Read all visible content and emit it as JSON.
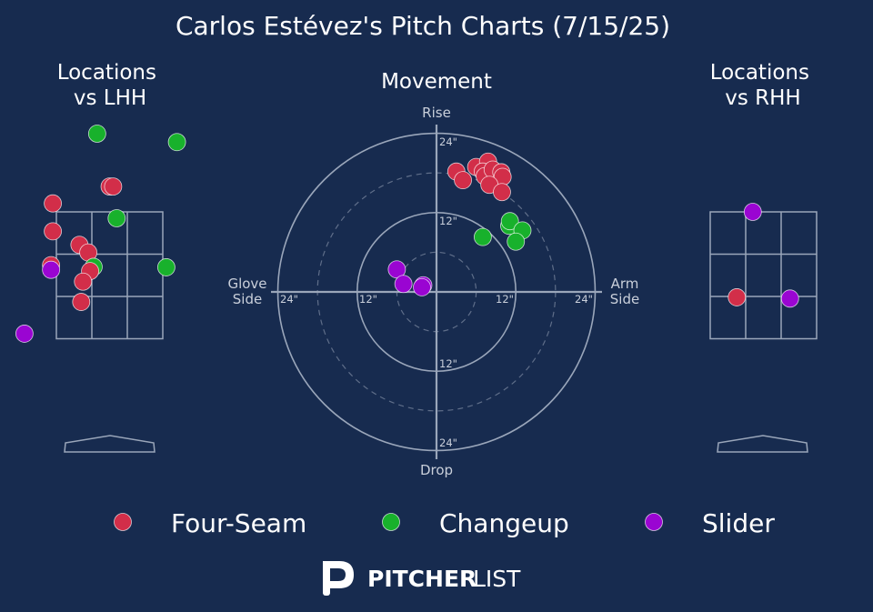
{
  "title": "Carlos Estévez's Pitch Charts (7/15/25)",
  "colors": {
    "background": "#172b4f",
    "four_seam": "#d22e49",
    "changeup": "#18b12c",
    "slider": "#9a05d2",
    "grid": "#9aa6ba",
    "text": "#ffffff",
    "muted": "#c9cfda"
  },
  "branding": {
    "logo_mark": "P",
    "word_bold": "PITCHER",
    "word_light": "LIST"
  },
  "chart_data": [
    {
      "type": "scatter",
      "title": "Locations\nvs LHH",
      "units": "strike zone cells",
      "points": [
        {
          "pitch": "Changeup",
          "x": -0.35,
          "y": 3.35
        },
        {
          "pitch": "Changeup",
          "x": 1.9,
          "y": 3.15
        },
        {
          "pitch": "Four-Seam",
          "x": 0.0,
          "y": 2.1
        },
        {
          "pitch": "Four-Seam",
          "x": 0.1,
          "y": 2.1
        },
        {
          "pitch": "Four-Seam",
          "x": -1.6,
          "y": 1.7
        },
        {
          "pitch": "Changeup",
          "x": 0.2,
          "y": 1.35
        },
        {
          "pitch": "Four-Seam",
          "x": -1.6,
          "y": 1.04
        },
        {
          "pitch": "Four-Seam",
          "x": -0.85,
          "y": 0.72
        },
        {
          "pitch": "Four-Seam",
          "x": -0.6,
          "y": 0.54
        },
        {
          "pitch": "Changeup",
          "x": -0.45,
          "y": 0.2
        },
        {
          "pitch": "Four-Seam",
          "x": -0.55,
          "y": 0.1
        },
        {
          "pitch": "Four-Seam",
          "x": -1.65,
          "y": 0.24
        },
        {
          "pitch": "Slider",
          "x": -1.65,
          "y": 0.13
        },
        {
          "pitch": "Four-Seam",
          "x": -0.75,
          "y": -0.15
        },
        {
          "pitch": "Changeup",
          "x": 1.6,
          "y": 0.19
        },
        {
          "pitch": "Four-Seam",
          "x": -0.8,
          "y": -0.63
        },
        {
          "pitch": "Slider",
          "x": -2.4,
          "y": -1.38
        }
      ]
    },
    {
      "type": "scatter",
      "title": "Movement",
      "xlabel_left": "Glove\nSide",
      "xlabel_right": "Arm\nSide",
      "ylabel_top": "Rise",
      "ylabel_bottom": "Drop",
      "ring_labels": [
        "24\"",
        "12\"",
        "12\"",
        "24\"",
        "12\"",
        "24\"",
        "12\"",
        "24\""
      ],
      "units": "inches",
      "rings": [
        6,
        12,
        18,
        24
      ],
      "points": [
        {
          "pitch": "Four-Seam",
          "x": 3,
          "y": 18.2
        },
        {
          "pitch": "Four-Seam",
          "x": 4,
          "y": 16.9
        },
        {
          "pitch": "Four-Seam",
          "x": 6,
          "y": 18.9
        },
        {
          "pitch": "Four-Seam",
          "x": 7.8,
          "y": 19.7
        },
        {
          "pitch": "Four-Seam",
          "x": 7.0,
          "y": 18.2
        },
        {
          "pitch": "Four-Seam",
          "x": 7.3,
          "y": 17.5
        },
        {
          "pitch": "Four-Seam",
          "x": 8.5,
          "y": 18.5
        },
        {
          "pitch": "Four-Seam",
          "x": 9.8,
          "y": 18.1
        },
        {
          "pitch": "Four-Seam",
          "x": 10.0,
          "y": 17.4
        },
        {
          "pitch": "Four-Seam",
          "x": 8.0,
          "y": 16.2
        },
        {
          "pitch": "Four-Seam",
          "x": 9.9,
          "y": 15.1
        },
        {
          "pitch": "Changeup",
          "x": 11.0,
          "y": 10.0
        },
        {
          "pitch": "Changeup",
          "x": 11.1,
          "y": 10.7
        },
        {
          "pitch": "Changeup",
          "x": 13.0,
          "y": 9.3
        },
        {
          "pitch": "Changeup",
          "x": 12.0,
          "y": 7.6
        },
        {
          "pitch": "Changeup",
          "x": 7.0,
          "y": 8.3
        },
        {
          "pitch": "Slider",
          "x": -6.0,
          "y": 3.4
        },
        {
          "pitch": "Slider",
          "x": -5.0,
          "y": 1.2
        },
        {
          "pitch": "Slider",
          "x": -2.0,
          "y": 1.0
        },
        {
          "pitch": "Slider",
          "x": -2.2,
          "y": 0.7
        }
      ]
    },
    {
      "type": "scatter",
      "title": "Locations\nvs RHH",
      "units": "strike zone cells",
      "points": [
        {
          "pitch": "Slider",
          "x": -0.3,
          "y": 1.5
        },
        {
          "pitch": "Four-Seam",
          "x": -0.75,
          "y": -0.52
        },
        {
          "pitch": "Slider",
          "x": 0.75,
          "y": -0.55
        }
      ]
    }
  ],
  "legend": [
    {
      "label": "Four-Seam",
      "color": "#d22e49"
    },
    {
      "label": "Changeup",
      "color": "#18b12c"
    },
    {
      "label": "Slider",
      "color": "#9a05d2"
    }
  ]
}
